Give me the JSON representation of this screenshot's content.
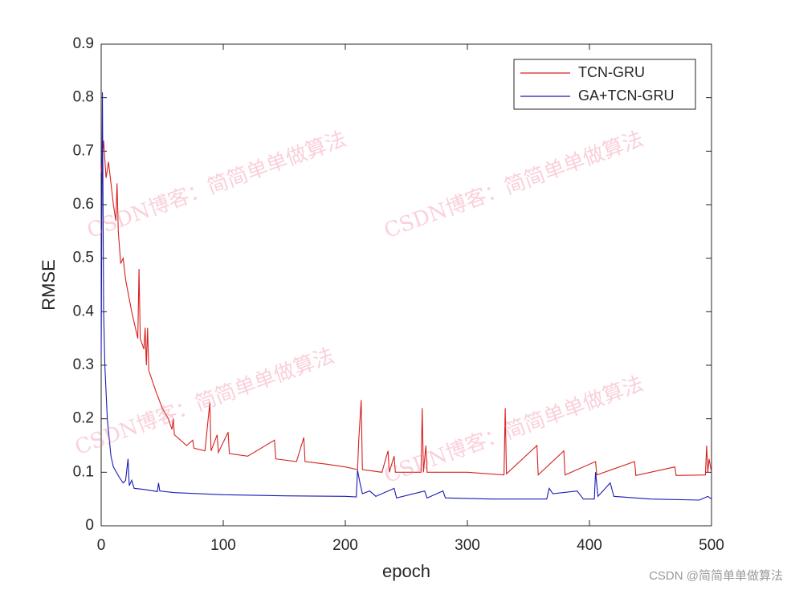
{
  "chart_data": {
    "type": "line",
    "xlabel": "epoch",
    "ylabel": "RMSE",
    "xlim": [
      0,
      500
    ],
    "xticks": [
      0,
      100,
      200,
      300,
      400,
      500
    ],
    "ylim": [
      0,
      0.9
    ],
    "yticks": [
      0,
      0.1,
      0.2,
      0.3,
      0.4,
      0.5,
      0.6,
      0.7,
      0.8,
      0.9
    ],
    "legend_position": "upper right",
    "series": [
      {
        "name": "TCN-GRU",
        "color": "#d62020",
        "x": [
          0,
          2,
          4,
          6,
          8,
          10,
          12,
          13,
          14,
          16,
          18,
          20,
          25,
          30,
          31,
          32,
          35,
          36,
          37,
          38,
          39,
          45,
          50,
          55,
          58,
          59,
          60,
          70,
          75,
          76,
          85,
          89,
          90,
          95,
          96,
          104,
          105,
          120,
          142,
          143,
          160,
          166,
          167,
          185,
          200,
          210,
          211,
          213,
          214,
          230,
          235,
          236,
          240,
          241,
          262,
          263,
          264,
          266,
          267,
          300,
          330,
          331,
          332,
          357,
          358,
          379,
          380,
          405,
          406,
          437,
          438,
          470,
          471,
          495,
          496,
          497,
          498,
          500
        ],
        "values": [
          0.66,
          0.72,
          0.65,
          0.68,
          0.64,
          0.6,
          0.57,
          0.64,
          0.55,
          0.49,
          0.5,
          0.46,
          0.4,
          0.35,
          0.48,
          0.35,
          0.33,
          0.37,
          0.3,
          0.37,
          0.29,
          0.25,
          0.22,
          0.2,
          0.18,
          0.2,
          0.17,
          0.15,
          0.16,
          0.145,
          0.14,
          0.23,
          0.14,
          0.17,
          0.137,
          0.175,
          0.135,
          0.13,
          0.16,
          0.125,
          0.12,
          0.165,
          0.12,
          0.115,
          0.11,
          0.105,
          0.16,
          0.235,
          0.105,
          0.1,
          0.14,
          0.1,
          0.13,
          0.1,
          0.1,
          0.22,
          0.1,
          0.15,
          0.1,
          0.1,
          0.095,
          0.22,
          0.097,
          0.15,
          0.095,
          0.14,
          0.095,
          0.12,
          0.095,
          0.12,
          0.094,
          0.11,
          0.094,
          0.095,
          0.15,
          0.1,
          0.125,
          0.1
        ]
      },
      {
        "name": "GA+TCN-GRU",
        "color": "#1a1ab4",
        "x": [
          0,
          1,
          2,
          3,
          5,
          8,
          10,
          15,
          18,
          20,
          22,
          23,
          25,
          27,
          35,
          46,
          47,
          48,
          60,
          100,
          150,
          200,
          209,
          210,
          212,
          214,
          220,
          225,
          240,
          242,
          265,
          267,
          280,
          282,
          320,
          365,
          367,
          370,
          390,
          395,
          404,
          405,
          407,
          417,
          420,
          450,
          490,
          497,
          500
        ],
        "values": [
          0.32,
          0.81,
          0.4,
          0.3,
          0.2,
          0.13,
          0.11,
          0.09,
          0.08,
          0.085,
          0.125,
          0.075,
          0.085,
          0.07,
          0.068,
          0.064,
          0.08,
          0.065,
          0.062,
          0.058,
          0.056,
          0.055,
          0.054,
          0.104,
          0.08,
          0.06,
          0.065,
          0.055,
          0.07,
          0.052,
          0.065,
          0.052,
          0.065,
          0.052,
          0.05,
          0.05,
          0.07,
          0.06,
          0.065,
          0.05,
          0.05,
          0.1,
          0.055,
          0.08,
          0.055,
          0.05,
          0.048,
          0.055,
          0.05
        ]
      }
    ]
  },
  "watermark": "CSDN博客：简简单单做算法",
  "credit": "CSDN @简简单单做算法"
}
